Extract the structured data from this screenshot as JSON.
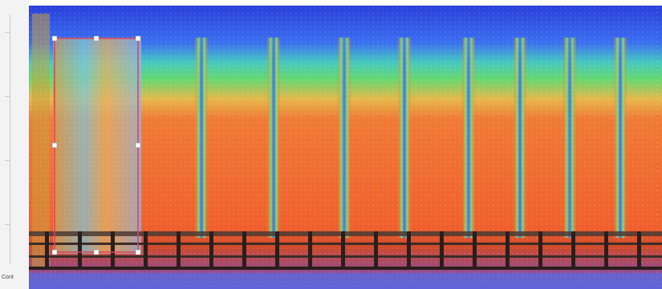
{
  "app": {
    "status_label": "Cont"
  },
  "viewport": {
    "content": "heatmap-rendering",
    "colors": {
      "cold": "#2a3fd9",
      "cool": "#3f7ee8",
      "mid": "#47d08a",
      "warm": "#f0a440",
      "hot": "#f0602c",
      "frame": "#4a3a34",
      "selection": "#d94060"
    },
    "selection_handles": 8
  }
}
